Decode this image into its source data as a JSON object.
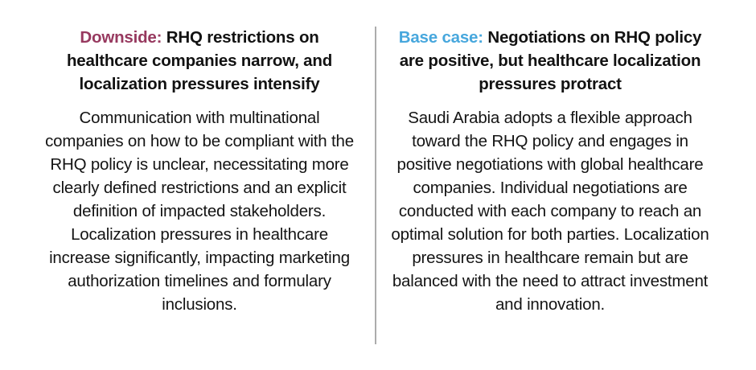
{
  "page": {
    "background_color": "#ffffff",
    "divider_color": "#ACACAC",
    "heading_text_color": "#121212",
    "body_text_color": "#141414"
  },
  "columns": [
    {
      "id": "downside",
      "label": "Downside:",
      "label_color": "#97395F",
      "title_rest": "RHQ restrictions on healthcare companies narrow, and localization pressures intensify",
      "body": "Communication with multinational companies on how to be compliant with the RHQ policy is unclear, necessitating more clearly defined restrictions and an explicit definition of impacted stakeholders. Localization pressures in healthcare increase significantly, impacting marketing authorization timelines and formulary inclusions."
    },
    {
      "id": "base-case",
      "label": "Base case:",
      "label_color": "#47A7DD",
      "title_rest": "Negotiations on RHQ policy are positive, but healthcare localization pressures protract",
      "body": "Saudi Arabia adopts a flexible approach toward the RHQ policy and engages in positive negotiations with global healthcare companies. Individual negotiations are conducted with each company to reach an optimal solution for both parties. Localization pressures in healthcare remain but are balanced with the need to attract investment and innovation."
    }
  ]
}
